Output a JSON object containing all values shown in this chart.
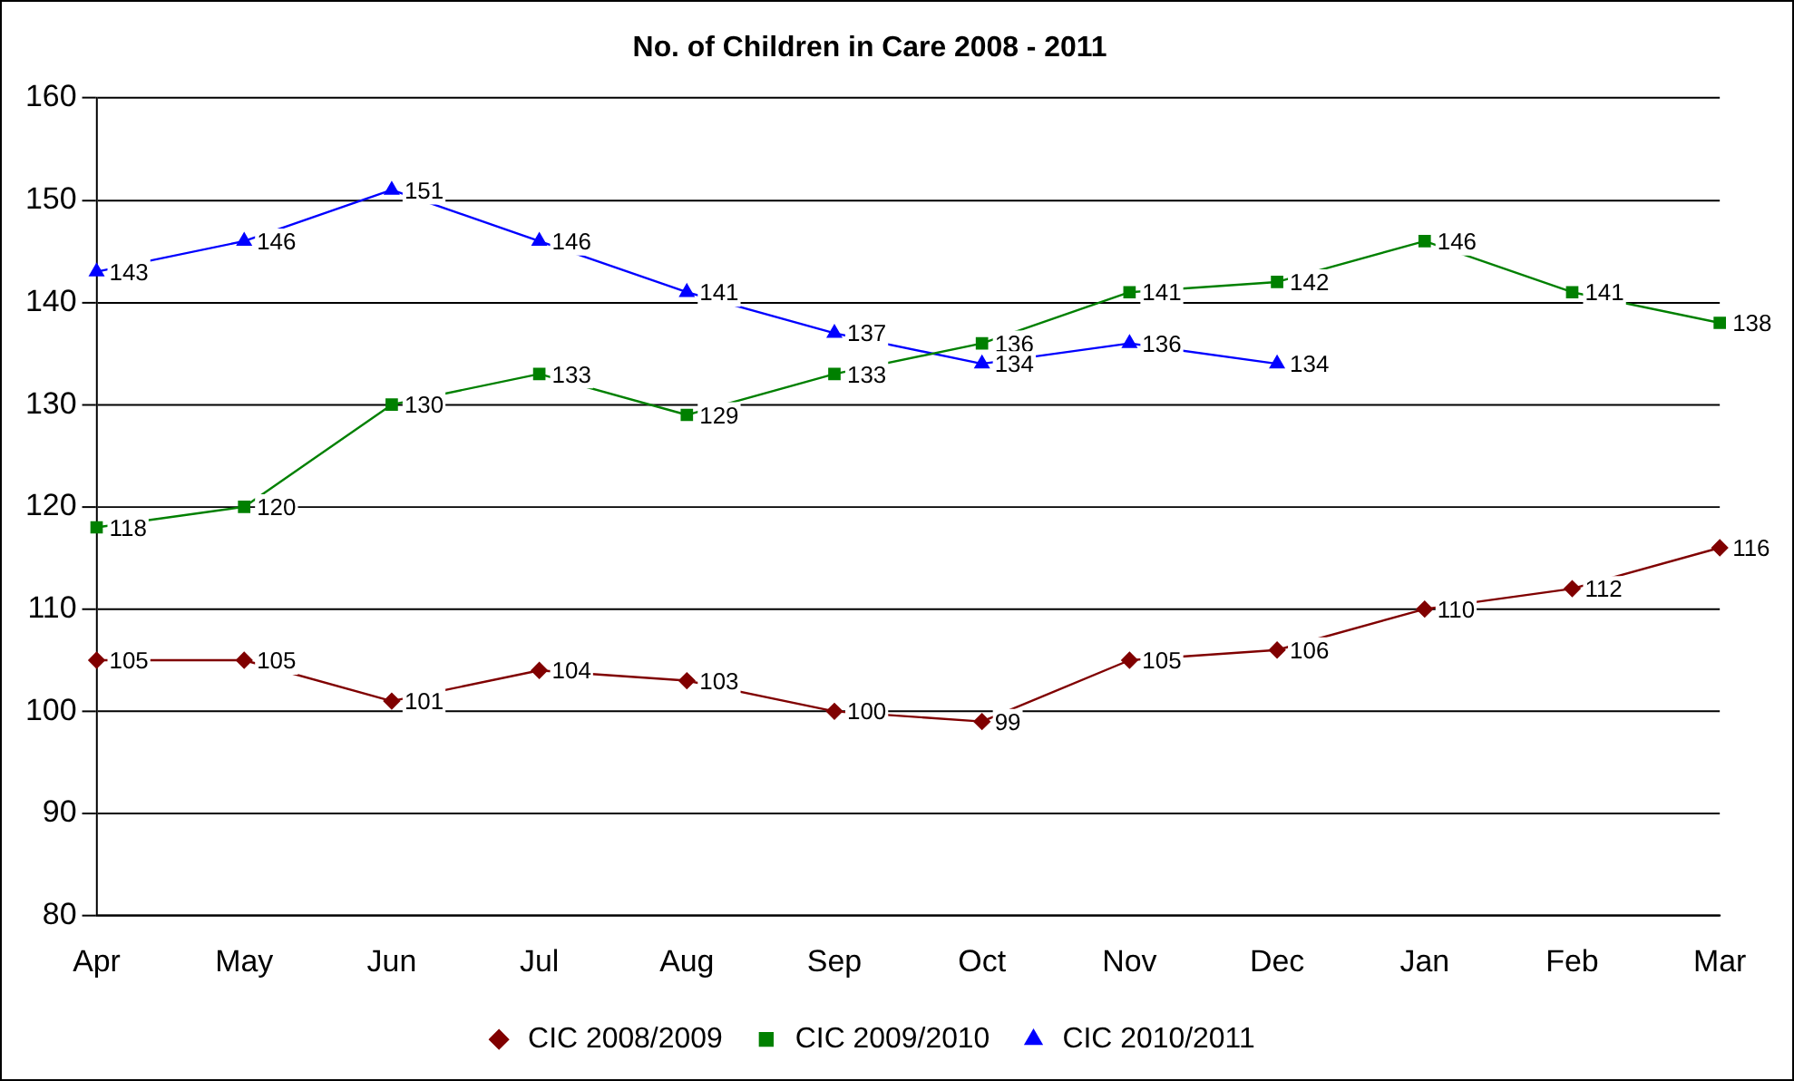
{
  "chart_data": {
    "type": "line",
    "title": "No. of Children in Care 2008 - 2011",
    "categories": [
      "Apr",
      "May",
      "Jun",
      "Jul",
      "Aug",
      "Sep",
      "Oct",
      "Nov",
      "Dec",
      "Jan",
      "Feb",
      "Mar"
    ],
    "series": [
      {
        "name": "CIC 2008/2009",
        "color": "#800000",
        "marker": "diamond",
        "values": [
          105,
          105,
          101,
          104,
          103,
          100,
          99,
          105,
          106,
          110,
          112,
          116
        ]
      },
      {
        "name": "CIC 2009/2010",
        "color": "#008000",
        "marker": "square",
        "values": [
          118,
          120,
          130,
          133,
          129,
          133,
          136,
          141,
          142,
          146,
          141,
          138
        ]
      },
      {
        "name": "CIC 2010/2011",
        "color": "#0000ff",
        "marker": "triangle",
        "values": [
          143,
          146,
          151,
          146,
          141,
          137,
          134,
          136,
          134,
          null,
          null,
          null
        ]
      }
    ],
    "ylim": [
      80,
      160
    ],
    "yticks": [
      80,
      90,
      100,
      110,
      120,
      130,
      140,
      150,
      160
    ],
    "grid": "y",
    "legend": "bottom",
    "data_labels": true,
    "line_style": "solid"
  }
}
